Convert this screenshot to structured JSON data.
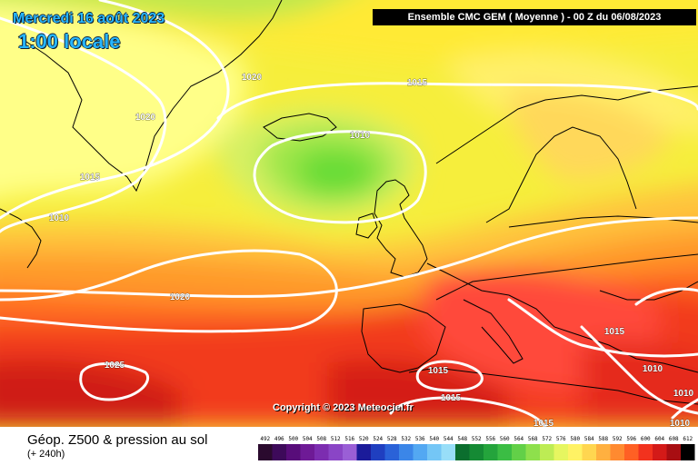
{
  "header": {
    "date_line": "Mercredi 16 août 2023",
    "time_line": "1:00 locale",
    "model_info": "Ensemble CMC GEM  ( Moyenne )  -  00 Z du 06/08/2023"
  },
  "footer": {
    "copyright": "Copyright © 2023 Meteociel.fr",
    "parameter": "Géop. Z500 & pression au sol",
    "lead_time": "(+ 240h)"
  },
  "isobars": [
    {
      "label": "1020",
      "value": 1020
    },
    {
      "label": "1020",
      "value": 1020
    },
    {
      "label": "1015",
      "value": 1015
    },
    {
      "label": "1010",
      "value": 1010
    },
    {
      "label": "1015",
      "value": 1015
    },
    {
      "label": "1010",
      "value": 1010
    },
    {
      "label": "1020",
      "value": 1020
    },
    {
      "label": "1025",
      "value": 1025
    },
    {
      "label": "1015",
      "value": 1015
    },
    {
      "label": "1015",
      "value": 1015
    },
    {
      "label": "1015",
      "value": 1015
    },
    {
      "label": "1015",
      "value": 1015
    },
    {
      "label": "1010",
      "value": 1010
    },
    {
      "label": "1010",
      "value": 1010
    },
    {
      "label": "1010",
      "value": 1010
    }
  ],
  "legend": {
    "labels": [
      "492",
      "496",
      "500",
      "504",
      "508",
      "512",
      "516",
      "520",
      "524",
      "528",
      "532",
      "536",
      "540",
      "544",
      "548",
      "552",
      "556",
      "560",
      "564",
      "568",
      "572",
      "576",
      "580",
      "584",
      "588",
      "592",
      "596",
      "600",
      "604",
      "608",
      "612"
    ],
    "colors": [
      "#2a0a2e",
      "#3d0a5a",
      "#580d7a",
      "#6e1a96",
      "#7c2db0",
      "#8a45c6",
      "#9a5fd6",
      "#1b1b9a",
      "#1f3fc0",
      "#2a62d8",
      "#3b86e8",
      "#53a8f2",
      "#74c6f6",
      "#98def8",
      "#0b6e2e",
      "#158a34",
      "#24a43c",
      "#3bbd44",
      "#62d048",
      "#8ee04c",
      "#bdec54",
      "#e6f660",
      "#fff264",
      "#ffd650",
      "#ffb040",
      "#ff8a30",
      "#ff6024",
      "#f2321e",
      "#d41a18",
      "#a80e12",
      "#000000"
    ]
  }
}
